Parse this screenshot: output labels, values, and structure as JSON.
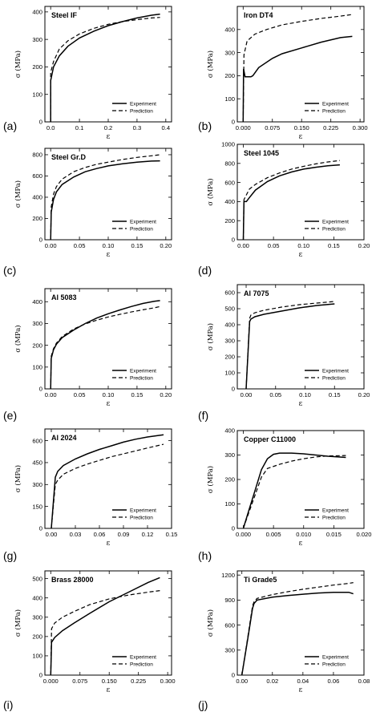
{
  "chart_data": [
    {
      "type": "line",
      "panel_label": "(a)",
      "title": "Steel IF",
      "xlabel": "ε",
      "ylabel": "σ (MPa)",
      "xlim": [
        -0.02,
        0.42
      ],
      "ylim": [
        0,
        420
      ],
      "xticks": [
        "0.0",
        "0.1",
        "0.2",
        "0.3",
        "0.4"
      ],
      "xtick_values": [
        0,
        0.1,
        0.2,
        0.3,
        0.4
      ],
      "yticks": [
        "0",
        "100",
        "200",
        "300",
        "400"
      ],
      "ytick_values": [
        0,
        100,
        200,
        300,
        400
      ],
      "legend": {
        "position": "bottom-right",
        "entries": [
          "Experiment",
          "Prediction"
        ]
      },
      "series": [
        {
          "name": "Experiment",
          "x": [
            0,
            0,
            0.01,
            0.03,
            0.06,
            0.1,
            0.15,
            0.2,
            0.25,
            0.3,
            0.35,
            0.38
          ],
          "y": [
            0,
            150,
            200,
            240,
            275,
            305,
            330,
            350,
            365,
            378,
            388,
            392
          ]
        },
        {
          "name": "Prediction",
          "x": [
            0,
            0,
            0.01,
            0.03,
            0.06,
            0.1,
            0.15,
            0.2,
            0.25,
            0.3,
            0.35,
            0.38
          ],
          "y": [
            0,
            180,
            220,
            265,
            295,
            320,
            340,
            355,
            365,
            372,
            378,
            380
          ]
        }
      ]
    },
    {
      "type": "line",
      "panel_label": "(b)",
      "title": "Iron DT4",
      "xlabel": "ε",
      "ylabel": "σ (MPa)",
      "xlim": [
        -0.015,
        0.31
      ],
      "ylim": [
        0,
        500
      ],
      "xticks": [
        "0.000",
        "0.075",
        "0.150",
        "0.225",
        "0.300"
      ],
      "xtick_values": [
        0,
        0.075,
        0.15,
        0.225,
        0.3
      ],
      "yticks": [
        "0",
        "100",
        "200",
        "300",
        "400"
      ],
      "ytick_values": [
        0,
        100,
        200,
        300,
        400
      ],
      "legend": {
        "position": "bottom-right",
        "entries": [
          "Experiment",
          "Prediction"
        ]
      },
      "series": [
        {
          "name": "Experiment",
          "x": [
            0,
            0.001,
            0.005,
            0.02,
            0.025,
            0.04,
            0.075,
            0.1,
            0.15,
            0.2,
            0.25,
            0.28
          ],
          "y": [
            0,
            230,
            195,
            195,
            200,
            235,
            275,
            295,
            320,
            345,
            365,
            370
          ]
        },
        {
          "name": "Prediction",
          "x": [
            0,
            0.002,
            0.01,
            0.03,
            0.06,
            0.1,
            0.15,
            0.2,
            0.25,
            0.28
          ],
          "y": [
            0,
            290,
            350,
            380,
            400,
            420,
            435,
            448,
            458,
            465
          ]
        }
      ]
    },
    {
      "type": "line",
      "panel_label": "(c)",
      "title": "Steel Gr.D",
      "xlabel": "ε",
      "ylabel": "σ (MPa)",
      "xlim": [
        -0.01,
        0.21
      ],
      "ylim": [
        0,
        860
      ],
      "xticks": [
        "0.00",
        "0.05",
        "0.10",
        "0.15",
        "0.20"
      ],
      "xtick_values": [
        0,
        0.05,
        0.1,
        0.15,
        0.2
      ],
      "yticks": [
        "0",
        "200",
        "400",
        "600",
        "800"
      ],
      "ytick_values": [
        0,
        200,
        400,
        600,
        800
      ],
      "legend": {
        "position": "bottom-right",
        "entries": [
          "Experiment",
          "Prediction"
        ]
      },
      "series": [
        {
          "name": "Experiment",
          "x": [
            0,
            0.001,
            0.005,
            0.01,
            0.02,
            0.04,
            0.06,
            0.08,
            0.1,
            0.125,
            0.15,
            0.175,
            0.19
          ],
          "y": [
            0,
            260,
            380,
            450,
            520,
            590,
            640,
            670,
            695,
            715,
            730,
            740,
            742
          ]
        },
        {
          "name": "Prediction",
          "x": [
            0,
            0.001,
            0.005,
            0.01,
            0.02,
            0.04,
            0.06,
            0.08,
            0.1,
            0.125,
            0.15,
            0.175,
            0.19
          ],
          "y": [
            0,
            310,
            430,
            500,
            570,
            640,
            680,
            710,
            730,
            755,
            775,
            790,
            800
          ]
        }
      ]
    },
    {
      "type": "line",
      "panel_label": "(d)",
      "title": "Steel 1045",
      "xlabel": "ε",
      "ylabel": "σ (MPa)",
      "xlim": [
        -0.01,
        0.2
      ],
      "ylim": [
        0,
        1000
      ],
      "xticks": [
        "0.00",
        "0.05",
        "0.10",
        "0.15",
        "0.20"
      ],
      "xtick_values": [
        0,
        0.05,
        0.1,
        0.15,
        0.2
      ],
      "yticks": [
        "0",
        "200",
        "400",
        "600",
        "800",
        "1000"
      ],
      "ytick_values": [
        0,
        200,
        400,
        600,
        800,
        1000
      ],
      "legend": {
        "position": "bottom-right",
        "entries": [
          "Experiment",
          "Prediction"
        ]
      },
      "series": [
        {
          "name": "Experiment",
          "x": [
            0,
            0.001,
            0.005,
            0.01,
            0.02,
            0.04,
            0.06,
            0.08,
            0.1,
            0.12,
            0.14,
            0.16
          ],
          "y": [
            0,
            400,
            400,
            440,
            520,
            610,
            670,
            710,
            740,
            760,
            775,
            785
          ]
        },
        {
          "name": "Prediction",
          "x": [
            0,
            0.001,
            0.01,
            0.02,
            0.04,
            0.06,
            0.08,
            0.1,
            0.12,
            0.14,
            0.16
          ],
          "y": [
            0,
            420,
            530,
            580,
            650,
            700,
            740,
            770,
            795,
            815,
            830
          ]
        }
      ]
    },
    {
      "type": "line",
      "panel_label": "(e)",
      "title": "Al 5083",
      "xlabel": "ε",
      "ylabel": "σ (MPa)",
      "xlim": [
        -0.01,
        0.21
      ],
      "ylim": [
        0,
        460
      ],
      "xticks": [
        "0.00",
        "0.05",
        "0.10",
        "0.15",
        "0.20"
      ],
      "xtick_values": [
        0,
        0.05,
        0.1,
        0.15,
        0.2
      ],
      "yticks": [
        "0",
        "100",
        "200",
        "300",
        "400"
      ],
      "ytick_values": [
        0,
        100,
        200,
        300,
        400
      ],
      "legend": {
        "position": "bottom-right",
        "entries": [
          "Experiment",
          "Prediction"
        ]
      },
      "series": [
        {
          "name": "Experiment",
          "x": [
            0,
            0.001,
            0.005,
            0.01,
            0.02,
            0.04,
            0.06,
            0.08,
            0.1,
            0.12,
            0.14,
            0.16,
            0.18,
            0.19
          ],
          "y": [
            0,
            140,
            180,
            205,
            235,
            270,
            300,
            325,
            345,
            362,
            378,
            392,
            402,
            405
          ]
        },
        {
          "name": "Prediction",
          "x": [
            0,
            0.001,
            0.005,
            0.01,
            0.02,
            0.04,
            0.06,
            0.08,
            0.1,
            0.12,
            0.14,
            0.16,
            0.18,
            0.19
          ],
          "y": [
            0,
            150,
            185,
            210,
            240,
            275,
            298,
            315,
            330,
            342,
            353,
            363,
            372,
            378
          ]
        }
      ]
    },
    {
      "type": "line",
      "panel_label": "(f)",
      "title": "Al 7075",
      "xlabel": "ε",
      "ylabel": "σ (MPa)",
      "xlim": [
        -0.015,
        0.2
      ],
      "ylim": [
        0,
        650
      ],
      "xticks": [
        "0.00",
        "0.05",
        "0.10",
        "0.15",
        "0.20"
      ],
      "xtick_values": [
        0,
        0.05,
        0.1,
        0.15,
        0.2
      ],
      "yticks": [
        "0",
        "100",
        "200",
        "300",
        "400",
        "500",
        "600"
      ],
      "ytick_values": [
        0,
        100,
        200,
        300,
        400,
        500,
        600
      ],
      "legend": {
        "position": "bottom-right",
        "entries": [
          "Experiment",
          "Prediction"
        ]
      },
      "series": [
        {
          "name": "Experiment",
          "x": [
            0,
            0.006,
            0.008,
            0.015,
            0.03,
            0.06,
            0.09,
            0.12,
            0.15
          ],
          "y": [
            0,
            420,
            435,
            450,
            465,
            485,
            505,
            520,
            530
          ]
        },
        {
          "name": "Prediction",
          "x": [
            0,
            0.006,
            0.008,
            0.015,
            0.03,
            0.06,
            0.09,
            0.12,
            0.15
          ],
          "y": [
            0,
            440,
            460,
            475,
            490,
            510,
            525,
            535,
            545
          ]
        }
      ]
    },
    {
      "type": "line",
      "panel_label": "(g)",
      "title": "Al 2024",
      "xlabel": "ε",
      "ylabel": "σ (MPa)",
      "xlim": [
        -0.008,
        0.15
      ],
      "ylim": [
        0,
        680
      ],
      "xticks": [
        "0.00",
        "0.03",
        "0.06",
        "0.09",
        "0.12",
        "0.15"
      ],
      "xtick_values": [
        0,
        0.03,
        0.06,
        0.09,
        0.12,
        0.15
      ],
      "yticks": [
        "0",
        "150",
        "300",
        "450",
        "600"
      ],
      "ytick_values": [
        0,
        150,
        300,
        450,
        600
      ],
      "legend": {
        "position": "bottom-right",
        "entries": [
          "Experiment",
          "Prediction"
        ]
      },
      "series": [
        {
          "name": "Experiment",
          "x": [
            0,
            0.005,
            0.008,
            0.015,
            0.03,
            0.045,
            0.06,
            0.075,
            0.09,
            0.105,
            0.12,
            0.14
          ],
          "y": [
            0,
            350,
            390,
            430,
            475,
            510,
            540,
            565,
            590,
            610,
            625,
            640
          ]
        },
        {
          "name": "Prediction",
          "x": [
            0,
            0.005,
            0.008,
            0.015,
            0.03,
            0.045,
            0.06,
            0.075,
            0.09,
            0.105,
            0.12,
            0.14
          ],
          "y": [
            0,
            300,
            330,
            370,
            410,
            440,
            465,
            490,
            510,
            530,
            550,
            575
          ]
        }
      ]
    },
    {
      "type": "line",
      "panel_label": "(h)",
      "title": "Copper C11000",
      "xlabel": "ε",
      "ylabel": "σ (MPa)",
      "xlim": [
        -0.001,
        0.02
      ],
      "ylim": [
        0,
        400
      ],
      "xticks": [
        "0.000",
        "0.005",
        "0.010",
        "0.015",
        "0.020"
      ],
      "xtick_values": [
        0,
        0.005,
        0.01,
        0.015,
        0.02
      ],
      "yticks": [
        "0",
        "100",
        "200",
        "300",
        "400"
      ],
      "ytick_values": [
        0,
        100,
        200,
        300,
        400
      ],
      "legend": {
        "position": "bottom-right",
        "entries": [
          "Experiment",
          "Prediction"
        ]
      },
      "series": [
        {
          "name": "Experiment",
          "x": [
            0,
            0.001,
            0.002,
            0.003,
            0.004,
            0.005,
            0.006,
            0.008,
            0.01,
            0.012,
            0.014,
            0.017
          ],
          "y": [
            0,
            80,
            160,
            240,
            285,
            303,
            308,
            308,
            305,
            300,
            295,
            290
          ]
        },
        {
          "name": "Prediction",
          "x": [
            0,
            0.001,
            0.002,
            0.003,
            0.004,
            0.006,
            0.008,
            0.01,
            0.012,
            0.014,
            0.017
          ],
          "y": [
            0,
            70,
            140,
            210,
            245,
            262,
            275,
            285,
            292,
            296,
            298
          ]
        }
      ]
    },
    {
      "type": "line",
      "panel_label": "(i)",
      "title": "Brass 28000",
      "xlabel": "ε",
      "ylabel": "σ (MPa)",
      "xlim": [
        -0.015,
        0.31
      ],
      "ylim": [
        0,
        540
      ],
      "xticks": [
        "0.000",
        "0.075",
        "0.150",
        "0.225",
        "0.300"
      ],
      "xtick_values": [
        0,
        0.075,
        0.15,
        0.225,
        0.3
      ],
      "yticks": [
        "0",
        "100",
        "200",
        "300",
        "400",
        "500"
      ],
      "ytick_values": [
        0,
        100,
        200,
        300,
        400,
        500
      ],
      "legend": {
        "position": "bottom-right",
        "entries": [
          "Experiment",
          "Prediction"
        ]
      },
      "series": [
        {
          "name": "Experiment",
          "x": [
            0,
            0.002,
            0.01,
            0.03,
            0.06,
            0.1,
            0.15,
            0.2,
            0.25,
            0.28
          ],
          "y": [
            0,
            170,
            195,
            230,
            270,
            320,
            380,
            430,
            480,
            505
          ]
        },
        {
          "name": "Prediction",
          "x": [
            0,
            0.002,
            0.01,
            0.03,
            0.06,
            0.1,
            0.15,
            0.2,
            0.25,
            0.28
          ],
          "y": [
            0,
            240,
            270,
            300,
            330,
            365,
            395,
            415,
            430,
            438
          ]
        }
      ]
    },
    {
      "type": "line",
      "panel_label": "(j)",
      "title": "Ti Grade5",
      "xlabel": "ε",
      "ylabel": "σ (MPa)",
      "xlim": [
        -0.003,
        0.08
      ],
      "ylim": [
        0,
        1250
      ],
      "xticks": [
        "0.00",
        "0.02",
        "0.04",
        "0.06",
        "0.08"
      ],
      "xtick_values": [
        0,
        0.02,
        0.04,
        0.06,
        0.08
      ],
      "yticks": [
        "0",
        "300",
        "600",
        "900",
        "1200"
      ],
      "ytick_values": [
        0,
        300,
        600,
        900,
        1200
      ],
      "legend": {
        "position": "bottom-right",
        "entries": [
          "Experiment",
          "Prediction"
        ]
      },
      "series": [
        {
          "name": "Experiment",
          "x": [
            0,
            0.004,
            0.007,
            0.008,
            0.01,
            0.02,
            0.03,
            0.04,
            0.05,
            0.06,
            0.07,
            0.073
          ],
          "y": [
            0,
            450,
            800,
            860,
            900,
            935,
            955,
            970,
            985,
            992,
            993,
            975
          ]
        },
        {
          "name": "Prediction",
          "x": [
            0,
            0.004,
            0.007,
            0.008,
            0.01,
            0.02,
            0.03,
            0.04,
            0.05,
            0.06,
            0.07,
            0.073
          ],
          "y": [
            0,
            470,
            830,
            880,
            920,
            965,
            1000,
            1030,
            1055,
            1080,
            1100,
            1110
          ]
        }
      ]
    }
  ]
}
